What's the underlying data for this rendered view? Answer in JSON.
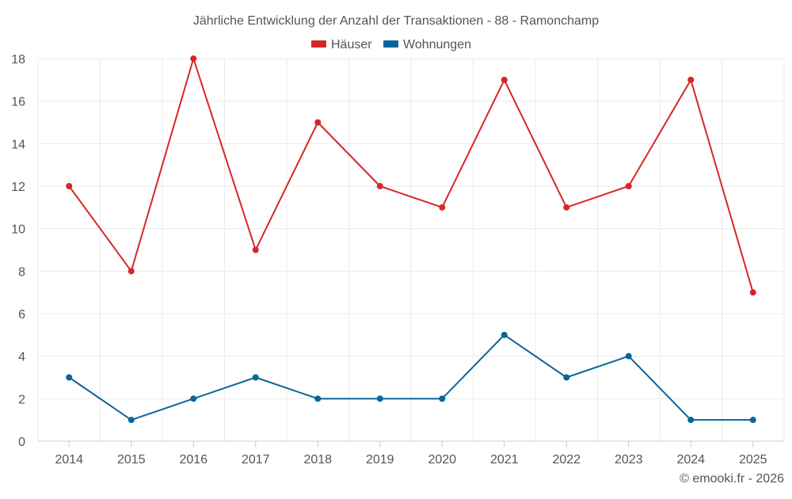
{
  "chart_data": {
    "type": "line",
    "title": "Jährliche Entwicklung der Anzahl der Transaktionen - 88 - Ramonchamp",
    "xlabel": "",
    "ylabel": "",
    "categories": [
      "2014",
      "2015",
      "2016",
      "2017",
      "2018",
      "2019",
      "2020",
      "2021",
      "2022",
      "2023",
      "2024",
      "2025"
    ],
    "ylim": [
      0,
      18
    ],
    "yticks": [
      0,
      2,
      4,
      6,
      8,
      10,
      12,
      14,
      16,
      18
    ],
    "grid": true,
    "legend_position": "top-center",
    "series": [
      {
        "name": "Häuser",
        "color": "#d62728",
        "values": [
          12,
          8,
          18,
          9,
          15,
          12,
          11,
          17,
          11,
          12,
          17,
          7
        ]
      },
      {
        "name": "Wohnungen",
        "color": "#0a6699",
        "values": [
          3,
          1,
          2,
          3,
          2,
          2,
          2,
          5,
          3,
          4,
          1,
          1
        ]
      }
    ],
    "credit": "© emooki.fr - 2026"
  }
}
